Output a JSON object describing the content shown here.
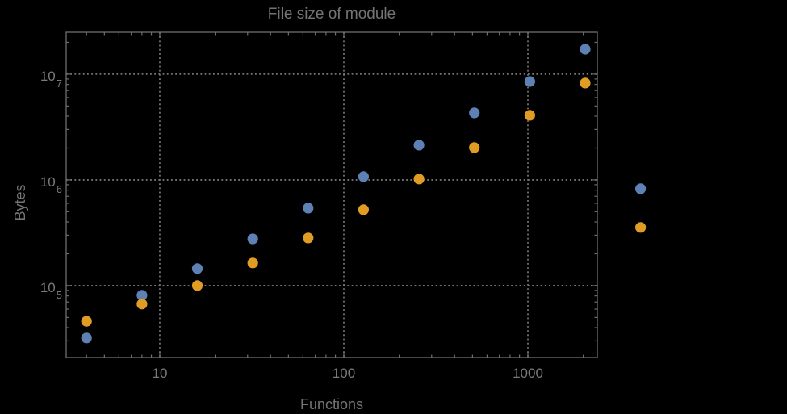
{
  "chart_data": {
    "type": "scatter",
    "title": "File size of module",
    "xlabel": "Functions",
    "ylabel": "Bytes",
    "x_scale": "log",
    "y_scale": "log",
    "xlim": [
      3.1,
      2383
    ],
    "ylim": [
      20900,
      24900000
    ],
    "x_major_ticks": [
      10,
      100,
      1000
    ],
    "y_major_ticks": [
      100000,
      1000000,
      10000000
    ],
    "grid_style": "dotted",
    "legend": "none",
    "x": [
      4,
      8,
      16,
      32,
      64,
      128,
      256,
      512,
      1024,
      2048,
      4096
    ],
    "series": [
      {
        "name": "blue",
        "color": "#5e81b5",
        "values": [
          32000,
          81000,
          145000,
          277000,
          541000,
          1074000,
          2130000,
          4300000,
          8530000,
          17200000,
          824000
        ]
      },
      {
        "name": "orange",
        "color": "#e19c24",
        "values": [
          46000,
          67000,
          100000,
          164000,
          282000,
          522000,
          1020000,
          2020000,
          4080000,
          8240000,
          355000
        ]
      }
    ],
    "points_clipped_to_frame": false,
    "colors": {
      "background": "#000000",
      "frame": "#6f6f6f",
      "grid": "#757575",
      "tick": "#6f6f6f",
      "text": "#747474",
      "tick_label": "#7a7a7a"
    }
  }
}
